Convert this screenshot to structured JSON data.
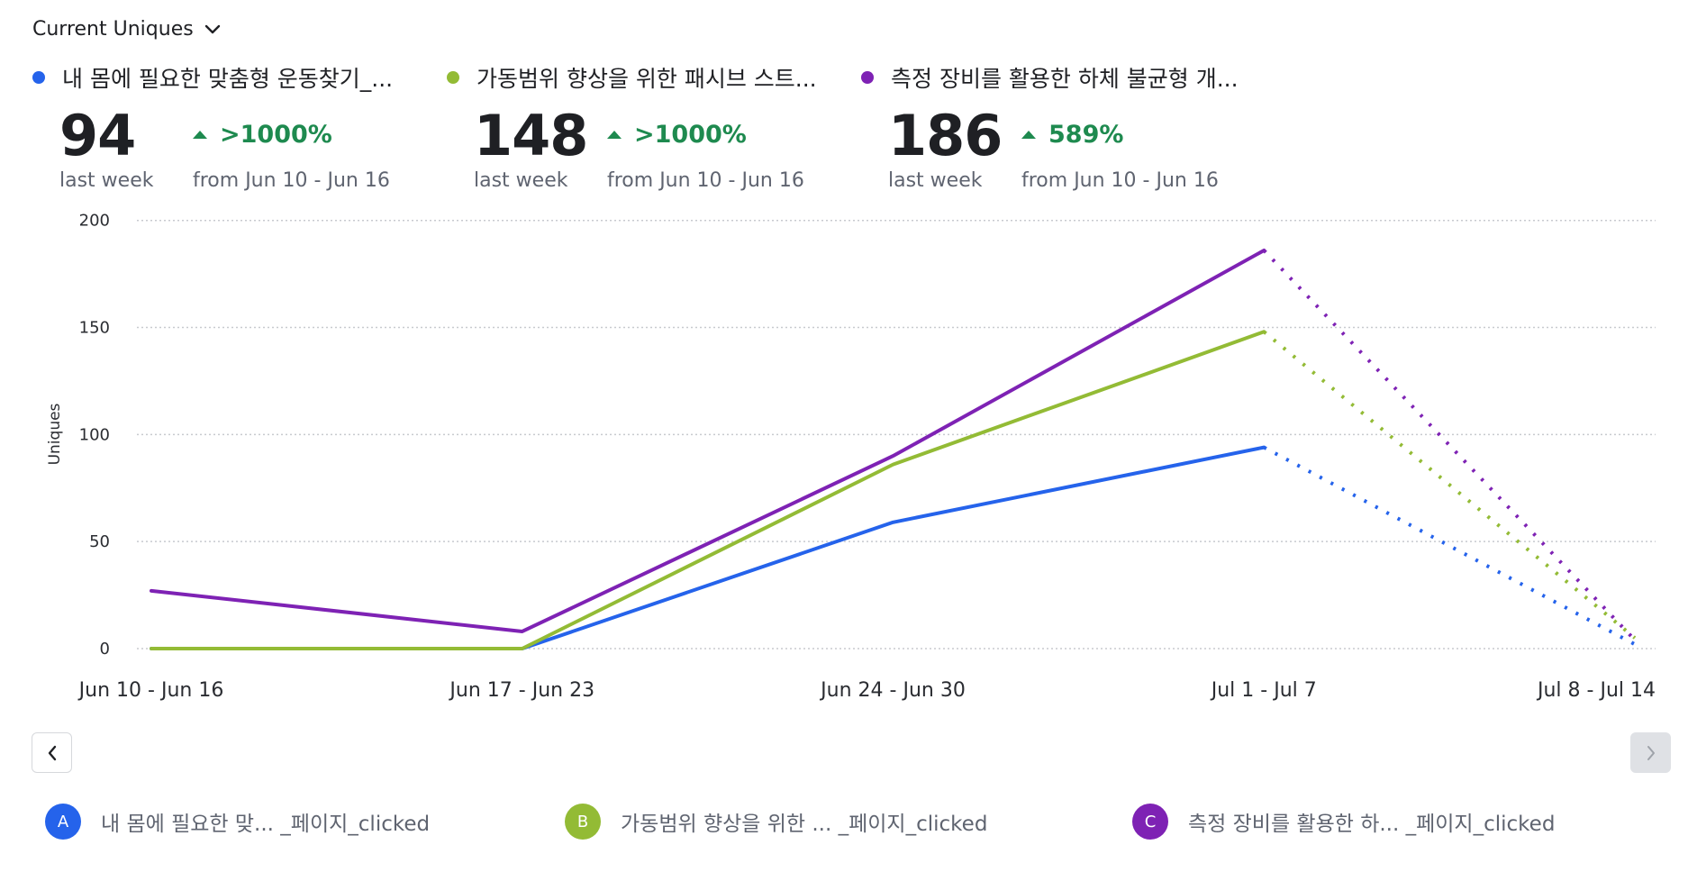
{
  "header": {
    "metric_label": "Current Uniques",
    "metric_icon": "chevron-down-icon"
  },
  "kpis": [
    {
      "series_key": "A",
      "name": "내 몸에 필요한 맞춤형 운동찾기_...",
      "color": "#2563eb",
      "value": "94",
      "value_label": "last week",
      "delta": ">1000%",
      "delta_direction": "up",
      "compare_label": "from Jun 10 - Jun 16"
    },
    {
      "series_key": "B",
      "name": "가동범위 향상을 위한 패시브 스트...",
      "color": "#93bb35",
      "value": "148",
      "value_label": "last week",
      "delta": ">1000%",
      "delta_direction": "up",
      "compare_label": "from Jun 10 - Jun 16"
    },
    {
      "series_key": "C",
      "name": "측정 장비를 활용한 하체 불균형 개...",
      "color": "#7e22b4",
      "value": "186",
      "value_label": "last week",
      "delta": "589%",
      "delta_direction": "up",
      "compare_label": "from Jun 10 - Jun 16"
    }
  ],
  "colors": {
    "positive_delta": "#1e8a4f",
    "gridline": "#c8cacf",
    "axis_text": "#2a2c31"
  },
  "chart_data": {
    "type": "line",
    "title": "",
    "xlabel": "",
    "ylabel": "Uniques",
    "ylim": [
      0,
      200
    ],
    "yticks": [
      0,
      50,
      100,
      150,
      200
    ],
    "grid": true,
    "categories": [
      "Jun 10 - Jun 16",
      "Jun 17 - Jun 23",
      "Jun 24 - Jun 30",
      "Jul 1 - Jul 7",
      "Jul 8 - Jul 14"
    ],
    "incomplete_from_index": 3,
    "series": [
      {
        "key": "A",
        "name": "내 몸에 필요한 맞... _페이지_clicked",
        "color": "#2563eb",
        "values": [
          0,
          0,
          59,
          94,
          2
        ]
      },
      {
        "key": "B",
        "name": "가동범위 향상을 위한 ...  _페이지_clicked",
        "color": "#93bb35",
        "values": [
          0,
          0,
          86,
          148,
          5
        ]
      },
      {
        "key": "C",
        "name": "측정 장비를 활용한 하... _페이지_clicked",
        "color": "#7e22b4",
        "values": [
          27,
          8,
          90,
          186,
          4
        ]
      }
    ]
  },
  "pagination": {
    "prev_icon": "chevron-left-icon",
    "next_icon": "chevron-right-icon",
    "next_disabled": true
  },
  "legend": [
    {
      "badge": "A",
      "label": "내 몸에 필요한 맞... _페이지_clicked",
      "color": "#2563eb"
    },
    {
      "badge": "B",
      "label": "가동범위 향상을 위한 ...  _페이지_clicked",
      "color": "#93bb35"
    },
    {
      "badge": "C",
      "label": "측정 장비를 활용한 하... _페이지_clicked",
      "color": "#7e22b4"
    }
  ]
}
